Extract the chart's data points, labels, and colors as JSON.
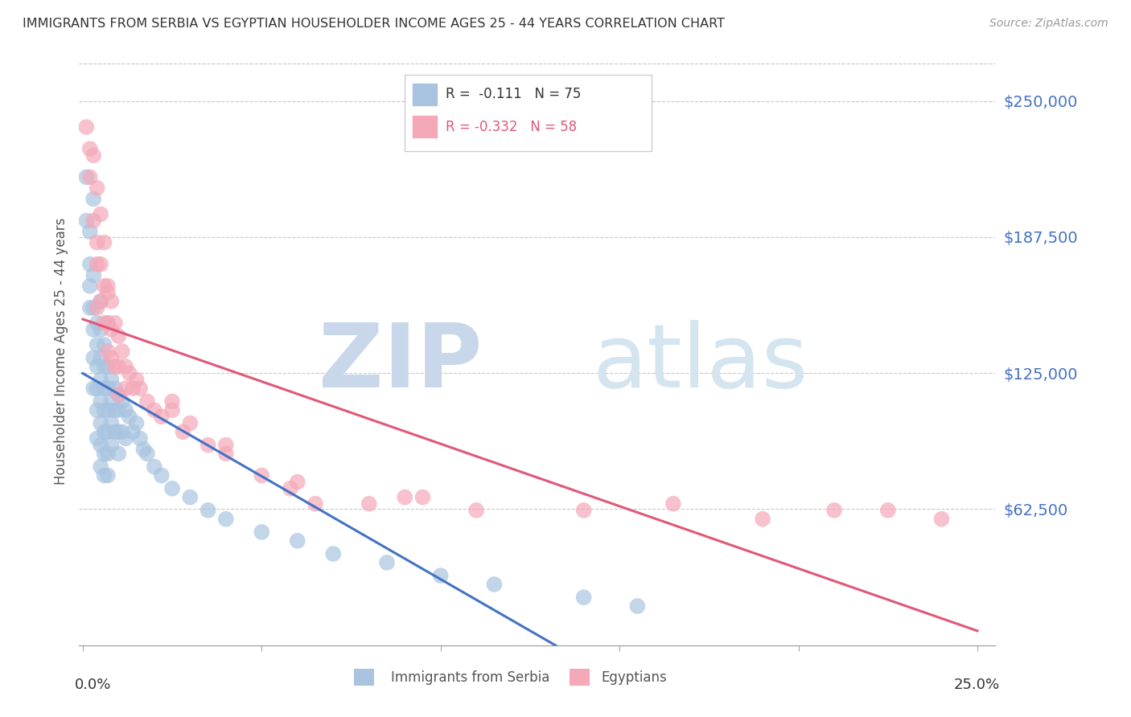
{
  "title": "IMMIGRANTS FROM SERBIA VS EGYPTIAN HOUSEHOLDER INCOME AGES 25 - 44 YEARS CORRELATION CHART",
  "source": "Source: ZipAtlas.com",
  "ylabel": "Householder Income Ages 25 - 44 years",
  "ytick_labels": [
    "$62,500",
    "$125,000",
    "$187,500",
    "$250,000"
  ],
  "ytick_values": [
    62500,
    125000,
    187500,
    250000
  ],
  "ymin": 0,
  "ymax": 270000,
  "xmin": -0.001,
  "xmax": 0.255,
  "serbia_color": "#a8c4e0",
  "egypt_color": "#f4a8b8",
  "serbia_line_color": "#4472c4",
  "egypt_line_color": "#e05878",
  "dashed_line_color": "#90aec8",
  "serbia_scatter_x": [
    0.001,
    0.001,
    0.002,
    0.002,
    0.002,
    0.002,
    0.003,
    0.003,
    0.003,
    0.003,
    0.003,
    0.004,
    0.004,
    0.004,
    0.004,
    0.004,
    0.004,
    0.005,
    0.005,
    0.005,
    0.005,
    0.005,
    0.005,
    0.005,
    0.006,
    0.006,
    0.006,
    0.006,
    0.006,
    0.006,
    0.006,
    0.007,
    0.007,
    0.007,
    0.007,
    0.007,
    0.007,
    0.008,
    0.008,
    0.008,
    0.008,
    0.009,
    0.009,
    0.009,
    0.01,
    0.01,
    0.01,
    0.01,
    0.011,
    0.011,
    0.012,
    0.012,
    0.013,
    0.014,
    0.015,
    0.016,
    0.017,
    0.018,
    0.02,
    0.022,
    0.025,
    0.03,
    0.035,
    0.04,
    0.05,
    0.06,
    0.07,
    0.085,
    0.1,
    0.115,
    0.14,
    0.155,
    0.003,
    0.005,
    0.007
  ],
  "serbia_scatter_y": [
    215000,
    195000,
    190000,
    175000,
    165000,
    155000,
    170000,
    155000,
    145000,
    132000,
    118000,
    148000,
    138000,
    128000,
    118000,
    108000,
    95000,
    145000,
    132000,
    122000,
    112000,
    102000,
    92000,
    82000,
    138000,
    128000,
    118000,
    108000,
    98000,
    88000,
    78000,
    128000,
    118000,
    108000,
    98000,
    88000,
    78000,
    122000,
    112000,
    102000,
    92000,
    118000,
    108000,
    98000,
    115000,
    108000,
    98000,
    88000,
    112000,
    98000,
    108000,
    95000,
    105000,
    98000,
    102000,
    95000,
    90000,
    88000,
    82000,
    78000,
    72000,
    68000,
    62000,
    58000,
    52000,
    48000,
    42000,
    38000,
    32000,
    28000,
    22000,
    18000,
    205000,
    158000,
    148000
  ],
  "egypt_scatter_x": [
    0.001,
    0.002,
    0.002,
    0.003,
    0.003,
    0.004,
    0.004,
    0.004,
    0.005,
    0.005,
    0.005,
    0.006,
    0.006,
    0.006,
    0.007,
    0.007,
    0.007,
    0.008,
    0.008,
    0.008,
    0.009,
    0.009,
    0.01,
    0.01,
    0.01,
    0.011,
    0.012,
    0.012,
    0.013,
    0.014,
    0.015,
    0.016,
    0.018,
    0.02,
    0.022,
    0.025,
    0.028,
    0.03,
    0.035,
    0.04,
    0.05,
    0.058,
    0.065,
    0.08,
    0.095,
    0.11,
    0.14,
    0.165,
    0.19,
    0.21,
    0.225,
    0.24,
    0.004,
    0.007,
    0.025,
    0.04,
    0.06,
    0.09
  ],
  "egypt_scatter_y": [
    238000,
    228000,
    215000,
    225000,
    195000,
    210000,
    185000,
    175000,
    198000,
    175000,
    158000,
    185000,
    165000,
    148000,
    162000,
    148000,
    135000,
    158000,
    145000,
    132000,
    148000,
    128000,
    142000,
    128000,
    115000,
    135000,
    128000,
    118000,
    125000,
    118000,
    122000,
    118000,
    112000,
    108000,
    105000,
    112000,
    98000,
    102000,
    92000,
    88000,
    78000,
    72000,
    65000,
    65000,
    68000,
    62000,
    62000,
    65000,
    58000,
    62000,
    62000,
    58000,
    155000,
    165000,
    108000,
    92000,
    75000,
    68000
  ]
}
